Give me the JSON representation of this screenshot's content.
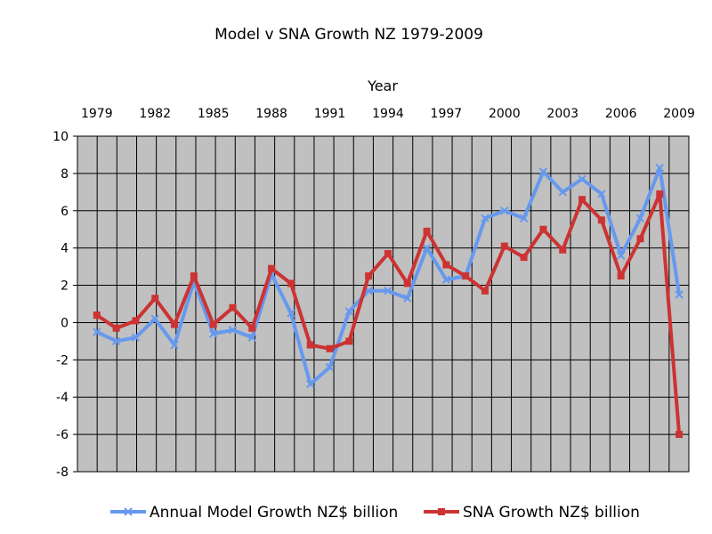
{
  "chart_data": {
    "type": "line",
    "title": "Model v SNA Growth NZ 1979-2009",
    "xlabel": "Year",
    "ylabel": "",
    "xaxis_position": "top",
    "x": [
      1979,
      1980,
      1981,
      1982,
      1983,
      1984,
      1985,
      1986,
      1987,
      1988,
      1989,
      1990,
      1991,
      1992,
      1993,
      1994,
      1995,
      1996,
      1997,
      1998,
      1999,
      2000,
      2001,
      2002,
      2003,
      2004,
      2005,
      2006,
      2007,
      2008,
      2009
    ],
    "x_tick_labels": [
      "1979",
      "1982",
      "1985",
      "1988",
      "1991",
      "1994",
      "1997",
      "2000",
      "2003",
      "2006",
      "2009"
    ],
    "xlim": [
      1978,
      2009.5
    ],
    "ylim": [
      -8,
      10
    ],
    "y_ticks": [
      "-8",
      "-6",
      "-4",
      "-2",
      "0",
      "2",
      "4",
      "6",
      "8",
      "10"
    ],
    "grid": true,
    "plot_background": "#c0c0c0",
    "legend_position": "bottom",
    "series": [
      {
        "name": "Annual Model Growth NZ$ billion",
        "color": "#6699ee",
        "marker": "cross",
        "values": [
          -0.5,
          -1.0,
          -0.8,
          0.2,
          -1.2,
          2.2,
          -0.6,
          -0.4,
          -0.8,
          2.6,
          0.5,
          -3.3,
          -2.4,
          0.6,
          1.7,
          1.7,
          1.3,
          4.0,
          2.3,
          2.5,
          5.6,
          6.0,
          5.6,
          8.1,
          7.0,
          7.7,
          6.9,
          3.6,
          5.6,
          8.3,
          1.5
        ]
      },
      {
        "name": "SNA Growth NZ$ billion",
        "color": "#cc3333",
        "marker": "square",
        "values": [
          0.4,
          -0.3,
          0.1,
          1.3,
          -0.1,
          2.5,
          -0.1,
          0.8,
          -0.3,
          2.9,
          2.1,
          -1.2,
          -1.4,
          -1.0,
          2.5,
          3.7,
          2.1,
          4.9,
          3.1,
          2.5,
          1.7,
          4.1,
          3.5,
          5.0,
          3.9,
          6.6,
          5.5,
          2.5,
          4.5,
          6.9,
          -6.0
        ]
      }
    ]
  }
}
